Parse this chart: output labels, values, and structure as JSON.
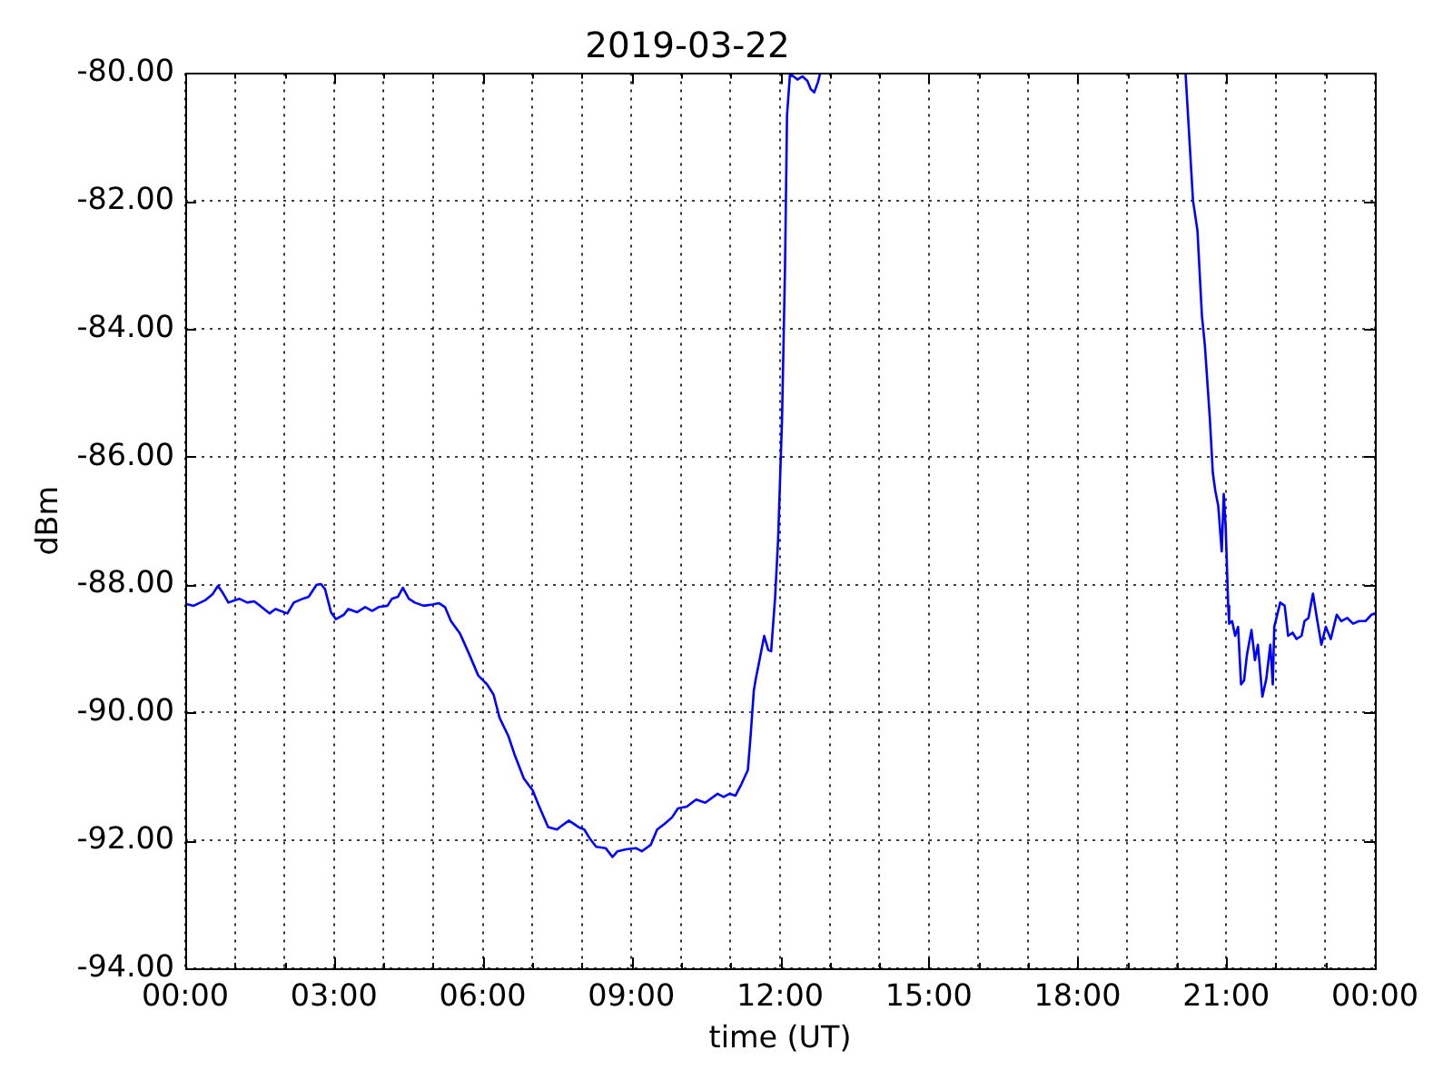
{
  "chart_data": {
    "type": "line",
    "title": "2019-03-22",
    "xlabel": "time (UT)",
    "ylabel": "dBm",
    "color": "#0000ff",
    "x": [
      0,
      0.17,
      0.41,
      0.55,
      0.66,
      0.75,
      0.87,
      1.09,
      1.25,
      1.39,
      1.51,
      1.7,
      1.82,
      2.06,
      2.19,
      2.37,
      2.49,
      2.65,
      2.74,
      2.82,
      2.94,
      3.04,
      3.2,
      3.29,
      3.47,
      3.63,
      3.77,
      3.9,
      4.08,
      4.17,
      4.29,
      4.39,
      4.51,
      4.63,
      4.81,
      4.99,
      5.12,
      5.24,
      5.36,
      5.54,
      5.73,
      5.91,
      6.09,
      6.22,
      6.34,
      6.52,
      6.64,
      6.83,
      7.01,
      7.13,
      7.32,
      7.5,
      7.56,
      7.74,
      7.93,
      8.05,
      8.17,
      8.29,
      8.48,
      8.62,
      8.72,
      8.9,
      9.09,
      9.21,
      9.39,
      9.52,
      9.67,
      9.82,
      9.94,
      10.12,
      10.31,
      10.49,
      10.74,
      10.86,
      10.98,
      11.1,
      11.22,
      11.35,
      11.41,
      11.47,
      11.51,
      11.56,
      11.68,
      11.76,
      11.82,
      11.9,
      11.96,
      12.04,
      12.1,
      12.14,
      12.2,
      12.27,
      12.35,
      12.45,
      12.55,
      12.62,
      12.69,
      12.76,
      12.81,
      16.5,
      20.18,
      20.33,
      20.42,
      20.51,
      20.57,
      20.67,
      20.73,
      20.78,
      20.84,
      20.91,
      20.95,
      20.99,
      21.04,
      21.06,
      21.12,
      21.18,
      21.24,
      21.3,
      21.36,
      21.42,
      21.51,
      21.58,
      21.64,
      21.73,
      21.81,
      21.89,
      21.94,
      21.97,
      22.09,
      22.18,
      22.25,
      22.34,
      22.42,
      22.52,
      22.58,
      22.66,
      22.75,
      22.84,
      22.92,
      23.01,
      23.11,
      23.23,
      23.32,
      23.44,
      23.56,
      23.68,
      23.81,
      23.93,
      24
    ],
    "values": [
      -88.3,
      -88.33,
      -88.24,
      -88.15,
      -88.02,
      -88.12,
      -88.28,
      -88.22,
      -88.28,
      -88.26,
      -88.33,
      -88.45,
      -88.38,
      -88.45,
      -88.28,
      -88.22,
      -88.19,
      -88.0,
      -87.99,
      -88.07,
      -88.43,
      -88.54,
      -88.47,
      -88.38,
      -88.43,
      -88.35,
      -88.41,
      -88.35,
      -88.33,
      -88.22,
      -88.19,
      -88.05,
      -88.22,
      -88.28,
      -88.33,
      -88.31,
      -88.29,
      -88.35,
      -88.57,
      -88.76,
      -89.09,
      -89.42,
      -89.56,
      -89.72,
      -90.08,
      -90.37,
      -90.65,
      -91.03,
      -91.22,
      -91.45,
      -91.79,
      -91.83,
      -91.79,
      -91.69,
      -91.79,
      -91.83,
      -91.98,
      -92.1,
      -92.12,
      -92.26,
      -92.17,
      -92.14,
      -92.12,
      -92.17,
      -92.07,
      -91.83,
      -91.74,
      -91.64,
      -91.5,
      -91.47,
      -91.36,
      -91.41,
      -91.27,
      -91.32,
      -91.27,
      -91.3,
      -91.12,
      -90.9,
      -90.32,
      -89.66,
      -89.47,
      -89.28,
      -88.8,
      -89.02,
      -89.04,
      -88.2,
      -87.3,
      -85.4,
      -83.03,
      -80.66,
      -80.02,
      -80.05,
      -80.1,
      -80.05,
      -80.12,
      -80.25,
      -80.3,
      -80.15,
      -80.0,
      null,
      -80.0,
      -81.99,
      -82.46,
      -83.79,
      -84.26,
      -85.4,
      -86.25,
      -86.53,
      -86.77,
      -87.48,
      -86.58,
      -87.1,
      -88.33,
      -88.61,
      -88.57,
      -88.8,
      -88.66,
      -89.56,
      -89.5,
      -89.09,
      -88.71,
      -89.18,
      -88.94,
      -89.75,
      -89.47,
      -88.94,
      -89.56,
      -88.66,
      -88.28,
      -88.33,
      -88.8,
      -88.75,
      -88.85,
      -88.8,
      -88.57,
      -88.52,
      -88.14,
      -88.57,
      -88.94,
      -88.66,
      -88.85,
      -88.47,
      -88.57,
      -88.52,
      -88.61,
      -88.57,
      -88.57,
      -88.47,
      -88.45
    ],
    "xlim": [
      0,
      24
    ],
    "xticks": [
      {
        "value": 0,
        "label": "00:00"
      },
      {
        "value": 1,
        "label": null
      },
      {
        "value": 2,
        "label": null
      },
      {
        "value": 3,
        "label": "03:00"
      },
      {
        "value": 4,
        "label": null
      },
      {
        "value": 5,
        "label": null
      },
      {
        "value": 6,
        "label": "06:00"
      },
      {
        "value": 7,
        "label": null
      },
      {
        "value": 8,
        "label": null
      },
      {
        "value": 9,
        "label": "09:00"
      },
      {
        "value": 10,
        "label": null
      },
      {
        "value": 11,
        "label": null
      },
      {
        "value": 12,
        "label": "12:00"
      },
      {
        "value": 13,
        "label": null
      },
      {
        "value": 14,
        "label": null
      },
      {
        "value": 15,
        "label": "15:00"
      },
      {
        "value": 16,
        "label": null
      },
      {
        "value": 17,
        "label": null
      },
      {
        "value": 18,
        "label": "18:00"
      },
      {
        "value": 19,
        "label": null
      },
      {
        "value": 20,
        "label": null
      },
      {
        "value": 21,
        "label": "21:00"
      },
      {
        "value": 22,
        "label": null
      },
      {
        "value": 23,
        "label": null
      },
      {
        "value": 24,
        "label": "00:00"
      }
    ],
    "ylim": [
      -94,
      -80
    ],
    "yticks": [
      {
        "value": -94,
        "label": "-94.00"
      },
      {
        "value": -92,
        "label": "-92.00"
      },
      {
        "value": -90,
        "label": "-90.00"
      },
      {
        "value": -88,
        "label": "-88.00"
      },
      {
        "value": -86,
        "label": "-86.00"
      },
      {
        "value": -84,
        "label": "-84.00"
      },
      {
        "value": -82,
        "label": "-82.00"
      },
      {
        "value": -80,
        "label": "-80.00"
      }
    ],
    "grid": true
  }
}
